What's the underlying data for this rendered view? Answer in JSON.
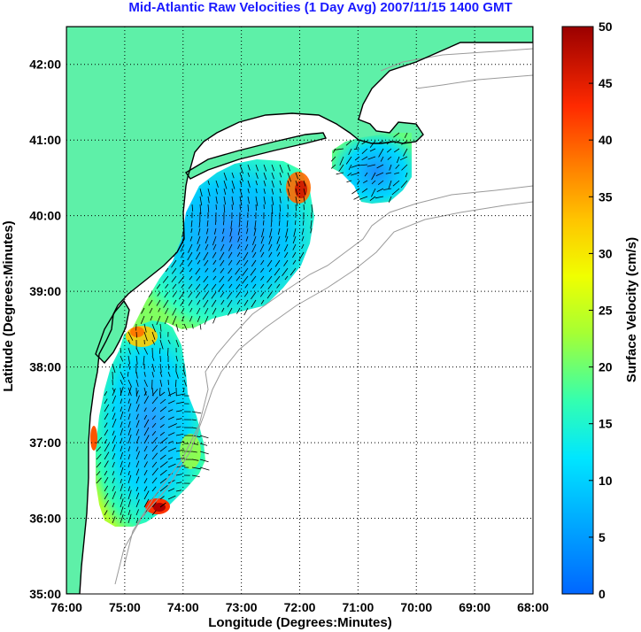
{
  "title": "Mid-Atlantic Raw Velocities (1 Day Avg) 2007/11/15 1400 GMT",
  "map": {
    "xlabel": "Longitude (Degrees:Minutes)",
    "ylabel": "Latitude (Degrees:Minutes)",
    "xticks": [
      "76:00",
      "75:00",
      "74:00",
      "73:00",
      "72:00",
      "71:00",
      "70:00",
      "69:00",
      "68:00"
    ],
    "yticks": [
      "42:00",
      "41:00",
      "40:00",
      "39:00",
      "38:00",
      "37:00",
      "36:00",
      "35:00"
    ],
    "grid": "dotted",
    "land_color": "#5ef0a8",
    "coast_color": "#000000",
    "bathymetry_color": "#9a9a9a"
  },
  "colorbar": {
    "label": "Surface Velocity (cm/s)",
    "min": 0,
    "max": 50,
    "ticks": [
      "50",
      "45",
      "40",
      "35",
      "30",
      "25",
      "20",
      "15",
      "10",
      "5",
      "0"
    ],
    "colormap": "jet"
  },
  "chart_data": {
    "type": "heatmap",
    "xlim": [
      -76,
      -68
    ],
    "ylim": [
      35,
      42.5
    ],
    "units": "cm/s",
    "regions": [
      {
        "name": "",
        "lon_range": [
          -75.6,
          -73.6
        ],
        "lat_range": [
          35.9,
          38.6
        ],
        "typical_speed": 12
      },
      {
        "name": "",
        "lon_range": [
          -74.6,
          -71.8
        ],
        "lat_range": [
          38.1,
          40.6
        ],
        "typical_speed": 10
      },
      {
        "name": "",
        "lon_range": [
          -71.5,
          -70.0
        ],
        "lat_range": [
          40.2,
          41.0
        ],
        "typical_speed": 9
      }
    ],
    "hotspots": [
      {
        "lon": -72.0,
        "lat": 40.3,
        "speed": 40
      },
      {
        "lon": -74.5,
        "lat": 36.1,
        "speed": 38
      },
      {
        "lon": -74.7,
        "lat": 38.2,
        "speed": 30
      },
      {
        "lon": -75.6,
        "lat": 36.9,
        "speed": 38
      }
    ]
  }
}
